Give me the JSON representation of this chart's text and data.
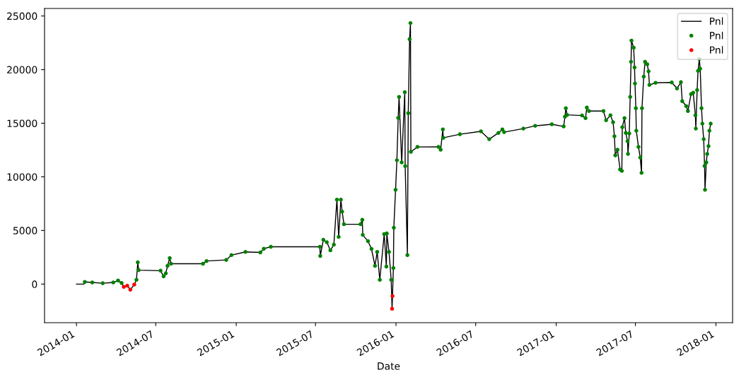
{
  "chart_data": {
    "type": "line",
    "xlabel": "Date",
    "xlim": [
      "2013-10-20",
      "2018-02-08"
    ],
    "xticks": [
      "2014-01",
      "2014-07",
      "2015-01",
      "2015-07",
      "2016-01",
      "2016-07",
      "2017-01",
      "2017-07",
      "2018-01"
    ],
    "ylim": [
      -3600,
      25700
    ],
    "yticks": [
      0,
      5000,
      10000,
      15000,
      20000,
      25000
    ],
    "grid": false,
    "legend": "top right",
    "series": [
      {
        "name": "Pnl",
        "color": "#000000",
        "x": [
          "2014-01-01",
          "2014-01-18",
          "2014-01-20",
          "2014-02-06",
          "2014-03-02",
          "2014-03-26",
          "2014-04-06",
          "2014-04-14",
          "2014-04-19",
          "2014-04-27",
          "2014-05-04",
          "2014-05-13",
          "2014-05-18",
          "2014-05-21",
          "2014-05-23",
          "2014-07-12",
          "2014-07-19",
          "2014-07-24",
          "2014-07-28",
          "2014-08-02",
          "2014-08-05",
          "2014-10-17",
          "2014-10-25",
          "2014-12-09",
          "2014-12-21",
          "2015-01-22",
          "2015-02-25",
          "2015-03-05",
          "2015-03-21",
          "2015-07-11",
          "2015-07-12",
          "2015-07-19",
          "2015-07-27",
          "2015-08-04",
          "2015-08-12",
          "2015-08-19",
          "2015-08-23",
          "2015-08-28",
          "2015-08-31",
          "2015-09-04",
          "2015-10-12",
          "2015-10-16",
          "2015-10-17",
          "2015-10-29",
          "2015-11-06",
          "2015-11-14",
          "2015-11-19",
          "2015-11-25",
          "2015-12-05",
          "2015-12-10",
          "2015-12-11",
          "2015-12-16",
          "2015-12-21",
          "2015-12-23",
          "2015-12-24",
          "2015-12-26",
          "2015-12-27",
          "2015-12-31",
          "2016-01-03",
          "2016-01-06",
          "2016-01-08",
          "2016-01-14",
          "2016-01-21",
          "2016-01-22",
          "2016-01-27",
          "2016-01-29",
          "2016-02-01",
          "2016-02-03",
          "2016-02-04",
          "2016-02-19",
          "2016-04-07",
          "2016-04-12",
          "2016-04-17",
          "2016-04-18",
          "2016-05-26",
          "2016-07-13",
          "2016-08-01",
          "2016-08-22",
          "2016-08-31",
          "2016-09-04",
          "2016-10-18",
          "2016-11-14",
          "2016-12-22",
          "2017-01-18",
          "2017-01-21",
          "2017-01-23",
          "2017-01-26",
          "2017-03-01",
          "2017-03-09",
          "2017-03-12",
          "2017-03-17",
          "2017-04-19",
          "2017-04-25",
          "2017-05-05",
          "2017-05-11",
          "2017-05-14",
          "2017-05-16",
          "2017-05-21",
          "2017-05-27",
          "2017-05-31",
          "2017-06-01",
          "2017-06-06",
          "2017-06-09",
          "2017-06-13",
          "2017-06-14",
          "2017-06-17",
          "2017-06-19",
          "2017-06-21",
          "2017-06-22",
          "2017-06-27",
          "2017-06-29",
          "2017-06-30",
          "2017-07-02",
          "2017-07-03",
          "2017-07-08",
          "2017-07-12",
          "2017-07-15",
          "2017-07-16",
          "2017-07-20",
          "2017-07-23",
          "2017-07-28",
          "2017-07-31",
          "2017-08-02",
          "2017-08-16",
          "2017-09-22",
          "2017-10-04",
          "2017-10-13",
          "2017-10-16",
          "2017-10-25",
          "2017-10-29",
          "2017-11-05",
          "2017-11-10",
          "2017-11-15",
          "2017-11-16",
          "2017-11-19",
          "2017-11-21",
          "2017-11-24",
          "2017-11-26",
          "2017-11-29",
          "2017-12-01",
          "2017-12-04",
          "2017-12-06",
          "2017-12-07",
          "2017-12-10",
          "2017-12-12",
          "2017-12-15",
          "2017-12-17",
          "2017-12-20"
        ],
        "values": [
          0,
          0,
          200,
          150,
          80,
          150,
          330,
          100,
          -260,
          -150,
          -520,
          -50,
          400,
          2030,
          1300,
          1250,
          720,
          1000,
          1700,
          2430,
          1900,
          1900,
          2150,
          2250,
          2700,
          3000,
          2950,
          3300,
          3480,
          3480,
          2620,
          4130,
          3900,
          3150,
          3670,
          7870,
          4400,
          7870,
          6760,
          5580,
          5580,
          6000,
          4590,
          4000,
          3280,
          1700,
          3000,
          400,
          4660,
          1640,
          4720,
          3000,
          400,
          -2300,
          -1110,
          1500,
          5250,
          8800,
          11550,
          15500,
          17450,
          11350,
          17900,
          11000,
          2700,
          15940,
          22830,
          24340,
          12330,
          12790,
          12800,
          12530,
          14430,
          13640,
          13970,
          14240,
          13510,
          14100,
          14430,
          14170,
          14500,
          14760,
          14900,
          14700,
          15610,
          16400,
          15780,
          15720,
          15480,
          16470,
          16140,
          16140,
          15280,
          15740,
          15090,
          13780,
          12000,
          12530,
          10690,
          10560,
          14630,
          15480,
          14100,
          13320,
          12140,
          14040,
          17450,
          20730,
          22700,
          22040,
          20200,
          18700,
          16400,
          14300,
          12790,
          11800,
          10370,
          16400,
          19350,
          20730,
          20500,
          19840,
          18570,
          18770,
          18800,
          18240,
          18830,
          17060,
          16600,
          16140,
          17710,
          17840,
          15740,
          14500,
          18100,
          19880,
          20990,
          20080,
          16400,
          14960,
          13510,
          11020,
          8790,
          11350,
          12140,
          12860,
          14300,
          14960
        ]
      },
      {
        "name": "Pnl",
        "type": "scatter",
        "color": "#008000",
        "x": [
          "2014-01-20",
          "2014-02-06",
          "2014-03-02",
          "2014-03-26",
          "2014-04-06",
          "2014-04-14",
          "2014-05-18",
          "2014-05-21",
          "2014-05-23",
          "2014-07-12",
          "2014-07-19",
          "2014-07-24",
          "2014-07-28",
          "2014-08-02",
          "2014-08-05",
          "2014-10-17",
          "2014-10-25",
          "2014-12-09",
          "2014-12-21",
          "2015-01-22",
          "2015-02-25",
          "2015-03-05",
          "2015-03-21",
          "2015-07-11",
          "2015-07-12",
          "2015-07-19",
          "2015-07-27",
          "2015-08-04",
          "2015-08-12",
          "2015-08-19",
          "2015-08-23",
          "2015-08-28",
          "2015-08-31",
          "2015-09-04",
          "2015-10-12",
          "2015-10-16",
          "2015-10-17",
          "2015-10-29",
          "2015-11-06",
          "2015-11-14",
          "2015-11-19",
          "2015-11-25",
          "2015-12-05",
          "2015-12-10",
          "2015-12-11",
          "2015-12-16",
          "2015-12-21",
          "2015-12-26",
          "2015-12-27",
          "2015-12-31",
          "2016-01-03",
          "2016-01-06",
          "2016-01-08",
          "2016-01-14",
          "2016-01-21",
          "2016-01-22",
          "2016-01-27",
          "2016-01-29",
          "2016-02-01",
          "2016-02-03",
          "2016-02-04",
          "2016-02-19",
          "2016-04-07",
          "2016-04-12",
          "2016-04-17",
          "2016-04-18",
          "2016-05-26",
          "2016-07-13",
          "2016-08-01",
          "2016-08-22",
          "2016-08-31",
          "2016-09-04",
          "2016-10-18",
          "2016-11-14",
          "2016-12-22",
          "2017-01-18",
          "2017-01-21",
          "2017-01-23",
          "2017-01-26",
          "2017-03-01",
          "2017-03-09",
          "2017-03-12",
          "2017-03-17",
          "2017-04-19",
          "2017-04-25",
          "2017-05-05",
          "2017-05-11",
          "2017-05-14",
          "2017-05-16",
          "2017-05-21",
          "2017-05-27",
          "2017-05-31",
          "2017-06-01",
          "2017-06-06",
          "2017-06-09",
          "2017-06-13",
          "2017-06-14",
          "2017-06-17",
          "2017-06-19",
          "2017-06-21",
          "2017-06-22",
          "2017-06-27",
          "2017-06-29",
          "2017-06-30",
          "2017-07-02",
          "2017-07-03",
          "2017-07-08",
          "2017-07-12",
          "2017-07-15",
          "2017-07-16",
          "2017-07-20",
          "2017-07-23",
          "2017-07-28",
          "2017-07-31",
          "2017-08-02",
          "2017-08-16",
          "2017-09-22",
          "2017-10-04",
          "2017-10-13",
          "2017-10-16",
          "2017-10-25",
          "2017-10-29",
          "2017-11-05",
          "2017-11-10",
          "2017-11-15",
          "2017-11-16",
          "2017-11-19",
          "2017-11-21",
          "2017-11-24",
          "2017-11-26",
          "2017-11-29",
          "2017-12-01",
          "2017-12-04",
          "2017-12-06",
          "2017-12-07",
          "2017-12-10",
          "2017-12-12",
          "2017-12-15",
          "2017-12-17",
          "2017-12-20"
        ],
        "values": [
          200,
          150,
          80,
          150,
          330,
          100,
          400,
          2030,
          1300,
          1250,
          720,
          1000,
          1700,
          2430,
          1900,
          1900,
          2150,
          2250,
          2700,
          3000,
          2950,
          3300,
          3480,
          3480,
          2620,
          4130,
          3900,
          3150,
          3670,
          7870,
          4400,
          7870,
          6760,
          5580,
          5580,
          6000,
          4590,
          4000,
          3280,
          1700,
          3000,
          400,
          4660,
          1640,
          4720,
          3000,
          400,
          1500,
          5250,
          8800,
          11550,
          15500,
          17450,
          11350,
          17900,
          11000,
          2700,
          15940,
          22830,
          24340,
          12330,
          12790,
          12800,
          12530,
          14430,
          13640,
          13970,
          14240,
          13510,
          14100,
          14430,
          14170,
          14500,
          14760,
          14900,
          14700,
          15610,
          16400,
          15780,
          15720,
          15480,
          16470,
          16140,
          16140,
          15280,
          15740,
          15090,
          13780,
          12000,
          12530,
          10690,
          10560,
          14630,
          15480,
          14100,
          13320,
          12140,
          14040,
          17450,
          20730,
          22700,
          22040,
          20200,
          18700,
          16400,
          14300,
          12790,
          11800,
          10370,
          16400,
          19350,
          20730,
          20500,
          19840,
          18570,
          18770,
          18800,
          18240,
          18830,
          17060,
          16600,
          16140,
          17710,
          17840,
          15740,
          14500,
          18100,
          19880,
          20990,
          20080,
          16400,
          14960,
          13510,
          11020,
          8790,
          11350,
          12140,
          12860,
          14300,
          14960
        ]
      },
      {
        "name": "Pnl",
        "type": "scatter",
        "color": "#ff0000",
        "x": [
          "2014-04-19",
          "2014-04-27",
          "2014-05-04",
          "2014-05-13",
          "2015-12-23",
          "2015-12-24"
        ],
        "values": [
          -260,
          -150,
          -520,
          -50,
          -2300,
          -1110
        ]
      }
    ]
  }
}
